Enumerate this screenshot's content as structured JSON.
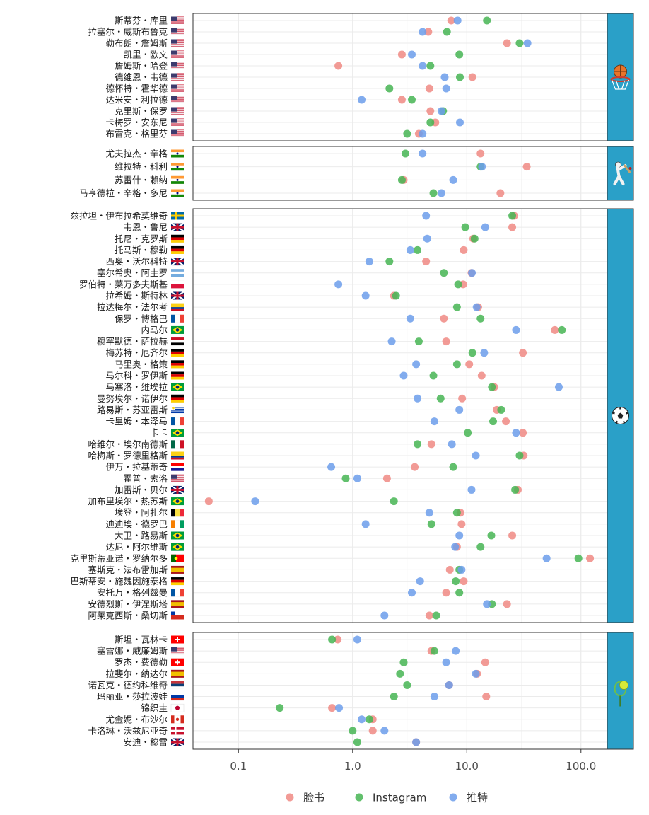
{
  "chart_data": {
    "type": "scatter",
    "x_scale": "log10",
    "xlim": [
      0.04,
      170
    ],
    "x_ticks": [
      "0.1",
      "1.0",
      "10.0",
      "100.0"
    ],
    "grid": true,
    "legend_position": "bottom",
    "series": [
      {
        "key": "facebook",
        "name": "脸书",
        "color": "#F08A84"
      },
      {
        "key": "instagram",
        "name": "Instagram",
        "color": "#46B553"
      },
      {
        "key": "twitter",
        "name": "推特",
        "color": "#6C9EEB"
      }
    ],
    "panels": [
      {
        "sport": "篮球",
        "icon": "basketball-icon",
        "athletes": [
          {
            "name": "斯蒂芬・库里",
            "country": "US",
            "facebook": 7.3,
            "instagram": 15.0,
            "twitter": 8.3
          },
          {
            "name": "拉塞尔・威斯布鲁克",
            "country": "US",
            "facebook": 4.6,
            "instagram": 6.7,
            "twitter": 4.1
          },
          {
            "name": "勒布朗・詹姆斯",
            "country": "US",
            "facebook": 22.5,
            "instagram": 29.0,
            "twitter": 34.0
          },
          {
            "name": "凯里・欧文",
            "country": "US",
            "facebook": 2.7,
            "instagram": 8.6,
            "twitter": 3.3
          },
          {
            "name": "詹姆斯・哈登",
            "country": "US",
            "facebook": 0.75,
            "instagram": 4.8,
            "twitter": 4.1
          },
          {
            "name": "德维恩・韦德",
            "country": "US",
            "facebook": 11.2,
            "instagram": 8.7,
            "twitter": 6.4
          },
          {
            "name": "德怀特・霍华德",
            "country": "US",
            "facebook": 4.7,
            "instagram": 2.1,
            "twitter": 6.6
          },
          {
            "name": "达米安・利拉德",
            "country": "US",
            "facebook": 2.7,
            "instagram": 3.3,
            "twitter": 1.2
          },
          {
            "name": "克里斯・保罗",
            "country": "US",
            "facebook": 4.8,
            "instagram": 6.2,
            "twitter": 6.0
          },
          {
            "name": "卡梅罗・安东尼",
            "country": "US",
            "facebook": 5.3,
            "instagram": 4.8,
            "twitter": 8.7
          },
          {
            "name": "布雷克・格里芬",
            "country": "US",
            "facebook": 3.8,
            "instagram": 3.0,
            "twitter": 4.1
          }
        ]
      },
      {
        "sport": "板球",
        "icon": "cricket-icon",
        "athletes": [
          {
            "name": "尤夫拉杰・辛格",
            "country": "IN",
            "facebook": 13.2,
            "instagram": 2.9,
            "twitter": 4.1
          },
          {
            "name": "维拉特・科利",
            "country": "IN",
            "facebook": 33.5,
            "instagram": 13.2,
            "twitter": 13.6
          },
          {
            "name": "苏雷什・赖纳",
            "country": "IN",
            "facebook": 2.8,
            "instagram": 2.7,
            "twitter": 7.6
          },
          {
            "name": "马亨德拉・辛格・多尼",
            "country": "IN",
            "facebook": 19.7,
            "instagram": 5.1,
            "twitter": 6.0
          }
        ]
      },
      {
        "sport": "足球",
        "icon": "soccer-ball-icon",
        "athletes": [
          {
            "name": "兹拉坦・伊布拉希莫维奇",
            "country": "SE",
            "facebook": 26.0,
            "instagram": 25.0,
            "twitter": 4.4
          },
          {
            "name": "韦恩・鲁尼",
            "country": "GB",
            "facebook": 25.0,
            "instagram": 9.7,
            "twitter": 14.5
          },
          {
            "name": "托尼・克罗斯",
            "country": "DE",
            "facebook": 11.4,
            "instagram": 11.7,
            "twitter": 4.5
          },
          {
            "name": "托马斯・穆勒",
            "country": "DE",
            "facebook": 9.4,
            "instagram": 3.7,
            "twitter": 3.2
          },
          {
            "name": "西奥・沃尔科特",
            "country": "GB",
            "facebook": 4.4,
            "instagram": 2.1,
            "twitter": 1.4
          },
          {
            "name": "塞尔希奥・阿圭罗",
            "country": "AR",
            "facebook": 11.0,
            "instagram": 6.3,
            "twitter": 11.1
          },
          {
            "name": "罗伯特・莱万多夫斯基",
            "country": "PL",
            "facebook": 9.3,
            "instagram": 8.4,
            "twitter": 0.75
          },
          {
            "name": "拉希姆・斯特林",
            "country": "GB",
            "facebook": 2.3,
            "instagram": 2.4,
            "twitter": 1.3
          },
          {
            "name": "拉达梅尔・法尔考",
            "country": "CO",
            "facebook": 12.6,
            "instagram": 8.2,
            "twitter": 12.2
          },
          {
            "name": "保罗・博格巴",
            "country": "FR",
            "facebook": 6.3,
            "instagram": 13.2,
            "twitter": 3.2
          },
          {
            "name": "内马尔",
            "country": "BR",
            "facebook": 59.0,
            "instagram": 68.0,
            "twitter": 27.0
          },
          {
            "name": "穆罕默德・萨拉赫",
            "country": "EG",
            "facebook": 6.6,
            "instagram": 3.8,
            "twitter": 2.2
          },
          {
            "name": "梅苏特・厄齐尔",
            "country": "DE",
            "facebook": 31.0,
            "instagram": 11.2,
            "twitter": 14.2
          },
          {
            "name": "马里奥・格策",
            "country": "DE",
            "facebook": 10.5,
            "instagram": 8.2,
            "twitter": 3.6
          },
          {
            "name": "马尔科・罗伊斯",
            "country": "DE",
            "facebook": 13.5,
            "instagram": 5.1,
            "twitter": 2.8
          },
          {
            "name": "马塞洛・维埃拉",
            "country": "BR",
            "facebook": 17.4,
            "instagram": 16.6,
            "twitter": 64.0
          },
          {
            "name": "曼努埃尔・诺伊尔",
            "country": "DE",
            "facebook": 9.1,
            "instagram": 5.9,
            "twitter": 3.7
          },
          {
            "name": "路易斯・苏亚雷斯",
            "country": "UY",
            "facebook": 18.3,
            "instagram": 20.0,
            "twitter": 8.6
          },
          {
            "name": "卡里姆・本泽马",
            "country": "FR",
            "facebook": 22.0,
            "instagram": 17.0,
            "twitter": 5.2
          },
          {
            "name": "卡卡",
            "country": "BR",
            "facebook": 31.0,
            "instagram": 10.2,
            "twitter": 27.0
          },
          {
            "name": "哈维尔・埃尔南德斯",
            "country": "MX",
            "facebook": 4.9,
            "instagram": 3.7,
            "twitter": 7.4
          },
          {
            "name": "哈梅斯・罗德里格斯",
            "country": "CO",
            "facebook": 31.5,
            "instagram": 29.0,
            "twitter": 12.0
          },
          {
            "name": "伊万・拉基蒂奇",
            "country": "HR",
            "facebook": 3.5,
            "instagram": 7.6,
            "twitter": 0.65
          },
          {
            "name": "霍普・索洛",
            "country": "US",
            "facebook": 2.0,
            "instagram": 0.87,
            "twitter": 1.1
          },
          {
            "name": "加雷斯・贝尔",
            "country": "GB",
            "facebook": 28.0,
            "instagram": 26.5,
            "twitter": 11.0
          },
          {
            "name": "加布里埃尔・热苏斯",
            "country": "BR",
            "facebook": 0.055,
            "instagram": 2.3,
            "twitter": 0.14
          },
          {
            "name": "埃登・阿扎尔",
            "country": "BE",
            "facebook": 8.8,
            "instagram": 8.2,
            "twitter": 4.7
          },
          {
            "name": "迪迪埃・德罗巴",
            "country": "CI",
            "facebook": 9.0,
            "instagram": 4.9,
            "twitter": 1.3
          },
          {
            "name": "大卫・路易斯",
            "country": "BR",
            "facebook": 25.0,
            "instagram": 16.4,
            "twitter": 8.6
          },
          {
            "name": "达尼・阿尔维斯",
            "country": "BR",
            "facebook": 8.2,
            "instagram": 13.2,
            "twitter": 7.9
          },
          {
            "name": "克里斯蒂亚诺・罗纳尔多",
            "country": "PT",
            "facebook": 120.0,
            "instagram": 95.0,
            "twitter": 50.0
          },
          {
            "name": "塞斯克・法布雷加斯",
            "country": "ES",
            "facebook": 7.1,
            "instagram": 8.6,
            "twitter": 9.0
          },
          {
            "name": "巴斯蒂安・施魏因施泰格",
            "country": "DE",
            "facebook": 9.4,
            "instagram": 8.0,
            "twitter": 3.9
          },
          {
            "name": "安托万・格列兹曼",
            "country": "FR",
            "facebook": 6.6,
            "instagram": 8.6,
            "twitter": 3.3
          },
          {
            "name": "安德烈斯・伊涅斯塔",
            "country": "ES",
            "facebook": 22.5,
            "instagram": 16.6,
            "twitter": 15.0
          },
          {
            "name": "阿莱克西斯・桑切斯",
            "country": "CL",
            "facebook": 4.7,
            "instagram": 5.4,
            "twitter": 1.9
          }
        ]
      },
      {
        "sport": "网球",
        "icon": "tennis-icon",
        "athletes": [
          {
            "name": "斯坦・瓦林卡",
            "country": "CH",
            "facebook": 0.74,
            "instagram": 0.66,
            "twitter": 1.1
          },
          {
            "name": "塞雷娜・威廉姆斯",
            "country": "US",
            "facebook": 4.9,
            "instagram": 5.2,
            "twitter": 8.0
          },
          {
            "name": "罗杰・费德勒",
            "country": "CH",
            "facebook": 14.5,
            "instagram": 2.8,
            "twitter": 6.6
          },
          {
            "name": "拉斐尔・纳达尔",
            "country": "ES",
            "facebook": 12.3,
            "instagram": 2.6,
            "twitter": 12.0
          },
          {
            "name": "诺瓦克・德约科维奇",
            "country": "RS",
            "facebook": 7.0,
            "instagram": 3.0,
            "twitter": 7.0
          },
          {
            "name": "玛丽亚・莎拉波娃",
            "country": "RU",
            "facebook": 14.8,
            "instagram": 2.3,
            "twitter": 5.2
          },
          {
            "name": "锦织圭",
            "country": "JP",
            "facebook": 0.66,
            "instagram": 0.23,
            "twitter": 0.76
          },
          {
            "name": "尤金妮・布沙尔",
            "country": "CA",
            "facebook": 1.5,
            "instagram": 1.4,
            "twitter": 1.2
          },
          {
            "name": "卡洛琳・沃兹尼亚奇",
            "country": "DK",
            "facebook": 1.5,
            "instagram": 1.0,
            "twitter": 1.9
          },
          {
            "name": "安迪・穆雷",
            "country": "GB",
            "facebook": 3.6,
            "instagram": 1.1,
            "twitter": 3.6
          }
        ]
      }
    ]
  }
}
